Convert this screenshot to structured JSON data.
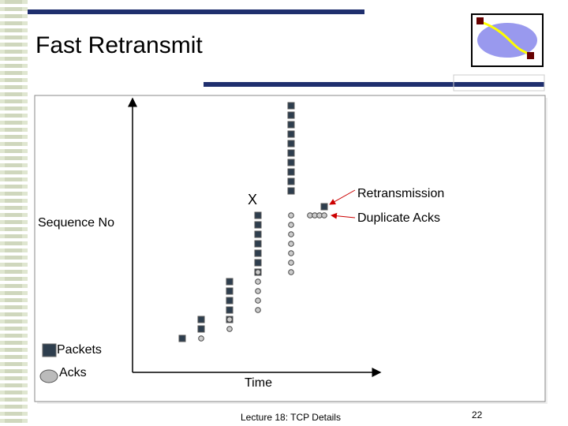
{
  "header": {
    "title": "Fast Retransmit"
  },
  "diagram": {
    "y_axis_label": "Sequence No",
    "x_axis_label": "Time",
    "mark_lost": "X",
    "annotations": [
      "Retransmission",
      "Duplicate Acks"
    ],
    "legend": [
      "Packets",
      "Acks"
    ]
  },
  "footer": {
    "text": "Lecture 18: TCP Details",
    "page": "22"
  }
}
